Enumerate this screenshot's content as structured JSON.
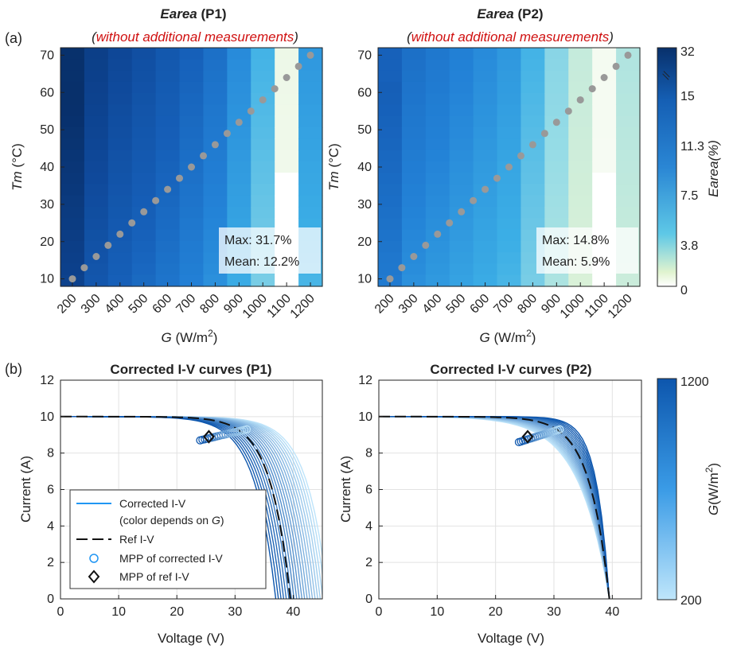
{
  "colors": {
    "dark_blue": "#08306b",
    "light_blue": "#2196f3",
    "white": "#ffffff",
    "light_green": "#d6efc7",
    "marker_gray": "#999999",
    "title_red": "#d01010"
  },
  "panel_a_label": "(a)",
  "panel_b_label": "(b)",
  "heatmaps": [
    {
      "title_em": "Earea",
      "title_rest": " (P1)",
      "subtitle": "without additional measurements",
      "max_label": "Max: 31.7%",
      "mean_label": "Mean: 12.2%"
    },
    {
      "title_em": "Earea",
      "title_rest": " (P2)",
      "subtitle": "without additional measurements",
      "max_label": "Max: 14.8%",
      "mean_label": "Mean: 5.9%"
    }
  ],
  "heatmap_colorbar": {
    "ticks": [
      "0",
      "3.8",
      "7.5",
      "11.3",
      "15",
      "32"
    ],
    "break_mark": "//",
    "label": "Earea(%)"
  },
  "iv_colorbar": {
    "top": "1200",
    "bottom": "200",
    "label": "G(W/m²)"
  },
  "iv_plots": [
    {
      "title": "Corrected I-V curves (P1)"
    },
    {
      "title": "Corrected I-V curves (P2)"
    }
  ],
  "legend": {
    "corrected_line1": "Corrected I-V",
    "corrected_line2_pre": "(color depends on ",
    "corrected_line2_em": "G",
    "corrected_line2_post": ")",
    "ref": "Ref I-V",
    "mpp_corrected": "MPP of corrected I-V",
    "mpp_ref": "MPP of ref I-V"
  },
  "chart_data": [
    {
      "type": "heatmap",
      "title": "Earea (P1)",
      "subtitle": "(without additional measurements)",
      "xlabel": "G (W/m²)",
      "ylabel": "Tm (°C)",
      "x_ticks": [
        200,
        300,
        400,
        500,
        600,
        700,
        800,
        900,
        1000,
        1100,
        1200
      ],
      "y_ticks": [
        10,
        20,
        30,
        40,
        50,
        60,
        70
      ],
      "column_Earea_percent_approx": [
        30,
        22,
        19,
        17,
        15,
        13,
        11,
        8,
        5,
        0.5,
        7
      ],
      "max": 31.7,
      "mean": 12.2,
      "diagonal_points": {
        "G": [
          200,
          1200
        ],
        "Tm": [
          10,
          70
        ],
        "count": 21
      }
    },
    {
      "type": "heatmap",
      "title": "Earea (P2)",
      "subtitle": "(without additional measurements)",
      "xlabel": "G (W/m²)",
      "ylabel": "Tm (°C)",
      "x_ticks": [
        200,
        300,
        400,
        500,
        600,
        700,
        800,
        900,
        1000,
        1100,
        1200
      ],
      "y_ticks": [
        10,
        20,
        30,
        40,
        50,
        60,
        70
      ],
      "column_Earea_percent_approx": [
        14,
        11,
        10,
        9,
        8,
        7,
        5,
        3,
        1.5,
        0.3,
        2
      ],
      "max": 14.8,
      "mean": 5.9,
      "diagonal_points": {
        "G": [
          200,
          1200
        ],
        "Tm": [
          10,
          70
        ],
        "count": 21
      }
    },
    {
      "type": "line",
      "title": "Corrected I-V curves (P1)",
      "xlabel": "Voltage (V)",
      "ylabel": "Current (A)",
      "xlim": [
        0,
        45
      ],
      "ylim": [
        0,
        12
      ],
      "x_ticks": [
        0,
        10,
        20,
        30,
        40
      ],
      "y_ticks": [
        0,
        2,
        4,
        6,
        8,
        10,
        12
      ],
      "grid": true,
      "legend_position": "bottom-left",
      "ref_iv": {
        "Isc": 10,
        "Voc": 39.5
      },
      "ref_mpp": {
        "V": 25.5,
        "I": 8.9
      },
      "corrected_curves": {
        "count": 21,
        "Voc_range": [
          37,
          46
        ],
        "mpp_V_range": [
          24,
          32
        ],
        "mpp_I_range": [
          8.7,
          9.3
        ]
      }
    },
    {
      "type": "line",
      "title": "Corrected I-V curves (P2)",
      "xlabel": "Voltage (V)",
      "ylabel": "Current (A)",
      "xlim": [
        0,
        45
      ],
      "ylim": [
        0,
        12
      ],
      "x_ticks": [
        0,
        10,
        20,
        30,
        40
      ],
      "y_ticks": [
        0,
        2,
        4,
        6,
        8,
        10,
        12
      ],
      "grid": true,
      "ref_iv": {
        "Isc": 10,
        "Voc": 39.5
      },
      "ref_mpp": {
        "V": 25.5,
        "I": 8.9
      },
      "corrected_curves": {
        "count": 21,
        "Voc_range": [
          39.5,
          39.5
        ],
        "mpp_V_range": [
          24,
          31
        ],
        "mpp_I_range": [
          8.6,
          9.3
        ]
      }
    }
  ]
}
